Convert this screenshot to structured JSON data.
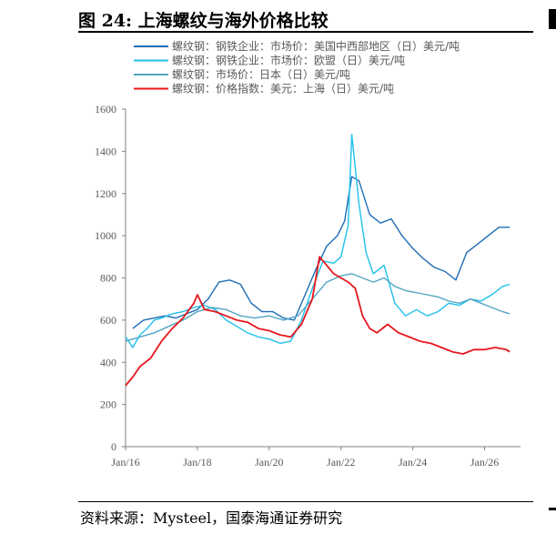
{
  "title": "图 24:  上海螺纹与海外价格比较",
  "source": "资料来源：Mysteel，国泰海通证券研究",
  "colors": {
    "series_us": "#1F6CB4",
    "series_eu": "#1FC0EC",
    "series_jp": "#52A6C4",
    "series_sh": "#E8161D",
    "axis": "#808080",
    "text": "#595959"
  },
  "chart_data": {
    "type": "line",
    "ylim": [
      0,
      1600
    ],
    "yticks": [
      "0",
      "200",
      "400",
      "600",
      "800",
      "1000",
      "1200",
      "1400",
      "1600"
    ],
    "xlim": [
      "2016-01",
      "2027-01"
    ],
    "xticks": [
      "Jan/16",
      "Jan/18",
      "Jan/20",
      "Jan/22",
      "Jan/24",
      "Jan/26"
    ],
    "grid": false,
    "legend_position": "top-left",
    "series": [
      {
        "name": "螺纹钢：钢铁企业：市场价：美国中西部地区（日）美元/吨",
        "color": "#1F6CB4",
        "points": [
          [
            2016.2,
            560
          ],
          [
            2016.5,
            600
          ],
          [
            2016.8,
            610
          ],
          [
            2017.1,
            620
          ],
          [
            2017.4,
            610
          ],
          [
            2017.7,
            630
          ],
          [
            2018.0,
            650
          ],
          [
            2018.3,
            700
          ],
          [
            2018.6,
            780
          ],
          [
            2018.9,
            790
          ],
          [
            2019.2,
            770
          ],
          [
            2019.5,
            680
          ],
          [
            2019.8,
            640
          ],
          [
            2020.1,
            640
          ],
          [
            2020.4,
            610
          ],
          [
            2020.7,
            600
          ],
          [
            2021.0,
            720
          ],
          [
            2021.3,
            840
          ],
          [
            2021.6,
            950
          ],
          [
            2021.9,
            1000
          ],
          [
            2022.1,
            1070
          ],
          [
            2022.3,
            1280
          ],
          [
            2022.5,
            1260
          ],
          [
            2022.8,
            1100
          ],
          [
            2023.1,
            1060
          ],
          [
            2023.4,
            1080
          ],
          [
            2023.7,
            1000
          ],
          [
            2024.0,
            940
          ],
          [
            2024.3,
            890
          ],
          [
            2024.6,
            850
          ],
          [
            2024.9,
            830
          ],
          [
            2025.2,
            790
          ],
          [
            2025.5,
            920
          ],
          [
            2025.8,
            960
          ],
          [
            2026.1,
            1000
          ],
          [
            2026.4,
            1040
          ],
          [
            2026.7,
            1040
          ]
        ]
      },
      {
        "name": "螺纹钢：钢铁企业：市场价：欧盟（日）美元/吨",
        "color": "#1FC0EC",
        "points": [
          [
            2016.0,
            520
          ],
          [
            2016.2,
            470
          ],
          [
            2016.4,
            530
          ],
          [
            2016.6,
            560
          ],
          [
            2016.8,
            600
          ],
          [
            2017.0,
            610
          ],
          [
            2017.3,
            630
          ],
          [
            2017.6,
            640
          ],
          [
            2017.9,
            660
          ],
          [
            2018.2,
            670
          ],
          [
            2018.5,
            650
          ],
          [
            2018.8,
            600
          ],
          [
            2019.1,
            570
          ],
          [
            2019.4,
            540
          ],
          [
            2019.7,
            520
          ],
          [
            2020.0,
            510
          ],
          [
            2020.3,
            490
          ],
          [
            2020.6,
            500
          ],
          [
            2020.9,
            600
          ],
          [
            2021.2,
            750
          ],
          [
            2021.5,
            880
          ],
          [
            2021.8,
            870
          ],
          [
            2022.0,
            900
          ],
          [
            2022.2,
            1050
          ],
          [
            2022.3,
            1480
          ],
          [
            2022.5,
            1150
          ],
          [
            2022.7,
            920
          ],
          [
            2022.9,
            820
          ],
          [
            2023.2,
            860
          ],
          [
            2023.5,
            680
          ],
          [
            2023.8,
            620
          ],
          [
            2024.1,
            650
          ],
          [
            2024.4,
            620
          ],
          [
            2024.7,
            640
          ],
          [
            2025.0,
            680
          ],
          [
            2025.3,
            670
          ],
          [
            2025.6,
            700
          ],
          [
            2025.9,
            690
          ],
          [
            2026.2,
            720
          ],
          [
            2026.5,
            760
          ],
          [
            2026.7,
            770
          ]
        ]
      },
      {
        "name": "螺纹钢：市场价：日本（日）美元/吨",
        "color": "#52A6C4",
        "points": [
          [
            2016.0,
            500
          ],
          [
            2016.4,
            520
          ],
          [
            2016.8,
            540
          ],
          [
            2017.2,
            570
          ],
          [
            2017.6,
            600
          ],
          [
            2018.0,
            640
          ],
          [
            2018.4,
            660
          ],
          [
            2018.8,
            650
          ],
          [
            2019.2,
            620
          ],
          [
            2019.6,
            610
          ],
          [
            2020.0,
            620
          ],
          [
            2020.4,
            600
          ],
          [
            2020.8,
            620
          ],
          [
            2021.2,
            700
          ],
          [
            2021.6,
            780
          ],
          [
            2022.0,
            810
          ],
          [
            2022.3,
            820
          ],
          [
            2022.6,
            800
          ],
          [
            2022.9,
            780
          ],
          [
            2023.2,
            800
          ],
          [
            2023.5,
            760
          ],
          [
            2023.8,
            740
          ],
          [
            2024.1,
            730
          ],
          [
            2024.4,
            720
          ],
          [
            2024.7,
            710
          ],
          [
            2025.0,
            690
          ],
          [
            2025.3,
            680
          ],
          [
            2025.6,
            700
          ],
          [
            2025.9,
            680
          ],
          [
            2026.2,
            660
          ],
          [
            2026.5,
            640
          ],
          [
            2026.7,
            630
          ]
        ]
      },
      {
        "name": "螺纹钢：价格指数：美元：上海（日）美元/吨",
        "color": "#E8161D",
        "points": [
          [
            2016.0,
            290
          ],
          [
            2016.2,
            330
          ],
          [
            2016.4,
            380
          ],
          [
            2016.7,
            420
          ],
          [
            2017.0,
            500
          ],
          [
            2017.3,
            560
          ],
          [
            2017.6,
            610
          ],
          [
            2017.9,
            680
          ],
          [
            2018.0,
            720
          ],
          [
            2018.2,
            650
          ],
          [
            2018.5,
            640
          ],
          [
            2018.8,
            620
          ],
          [
            2019.1,
            600
          ],
          [
            2019.4,
            590
          ],
          [
            2019.7,
            560
          ],
          [
            2020.0,
            550
          ],
          [
            2020.3,
            530
          ],
          [
            2020.6,
            520
          ],
          [
            2020.9,
            580
          ],
          [
            2021.2,
            700
          ],
          [
            2021.4,
            900
          ],
          [
            2021.6,
            860
          ],
          [
            2021.8,
            820
          ],
          [
            2022.0,
            800
          ],
          [
            2022.2,
            780
          ],
          [
            2022.4,
            750
          ],
          [
            2022.6,
            620
          ],
          [
            2022.8,
            560
          ],
          [
            2023.0,
            540
          ],
          [
            2023.3,
            580
          ],
          [
            2023.6,
            540
          ],
          [
            2023.9,
            520
          ],
          [
            2024.2,
            500
          ],
          [
            2024.5,
            490
          ],
          [
            2024.8,
            470
          ],
          [
            2025.1,
            450
          ],
          [
            2025.4,
            440
          ],
          [
            2025.7,
            460
          ],
          [
            2026.0,
            460
          ],
          [
            2026.3,
            470
          ],
          [
            2026.6,
            460
          ],
          [
            2026.7,
            450
          ]
        ]
      }
    ]
  }
}
